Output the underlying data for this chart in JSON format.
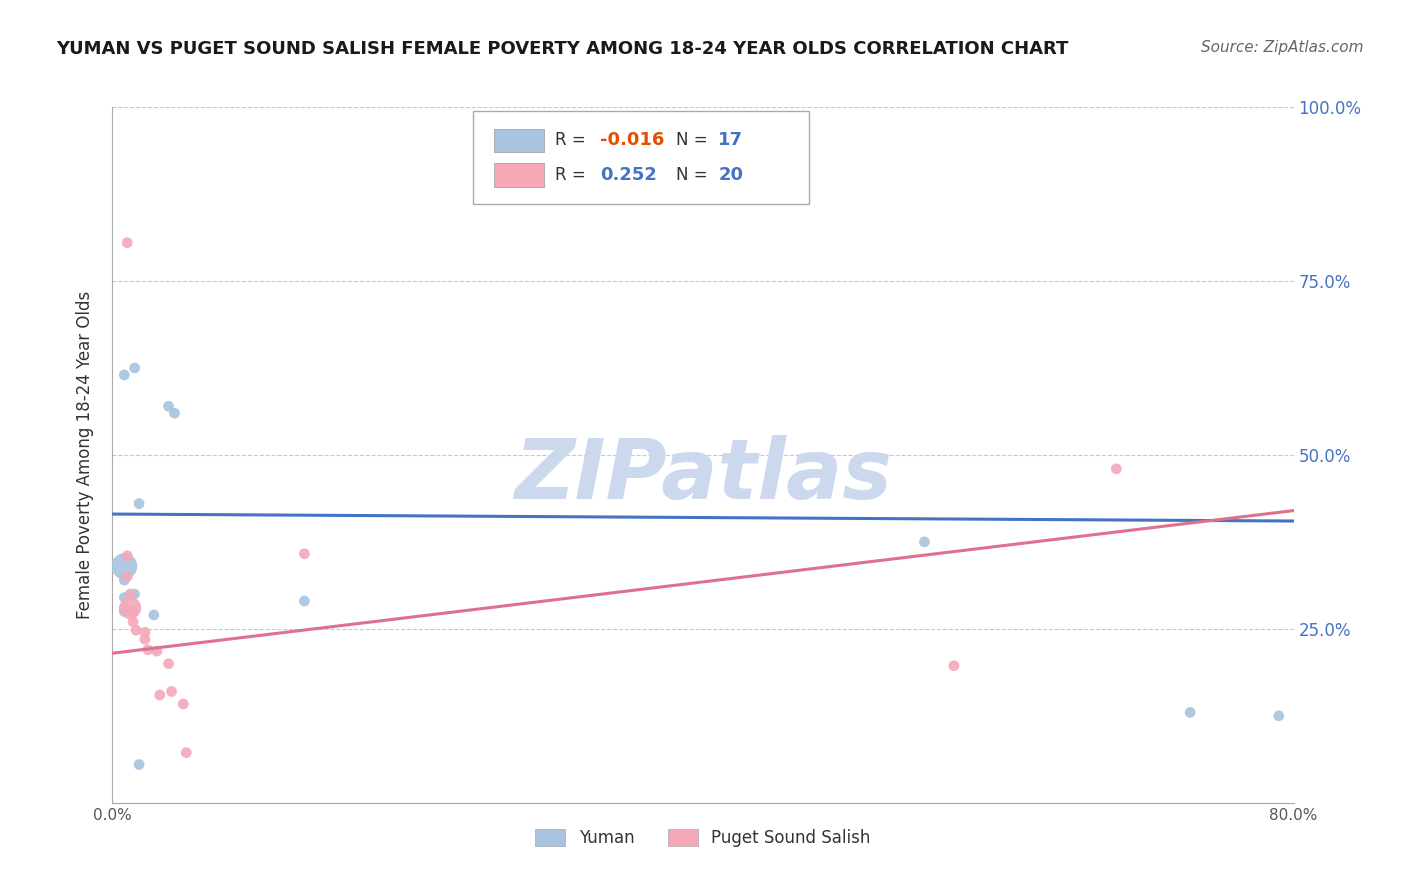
{
  "title": "YUMAN VS PUGET SOUND SALISH FEMALE POVERTY AMONG 18-24 YEAR OLDS CORRELATION CHART",
  "source": "Source: ZipAtlas.com",
  "ylabel": "Female Poverty Among 18-24 Year Olds",
  "xlim": [
    0.0,
    0.8
  ],
  "ylim": [
    0.0,
    1.0
  ],
  "xticks": [
    0.0,
    0.1,
    0.2,
    0.3,
    0.4,
    0.5,
    0.6,
    0.7,
    0.8
  ],
  "xticklabels": [
    "0.0%",
    "",
    "",
    "",
    "",
    "",
    "",
    "",
    "80.0%"
  ],
  "yticks": [
    0.0,
    0.25,
    0.5,
    0.75,
    1.0
  ],
  "yticklabels": [
    "",
    "25.0%",
    "50.0%",
    "75.0%",
    "100.0%"
  ],
  "background_color": "#ffffff",
  "grid_color": "#bbbbbb",
  "legend_R": [
    -0.016,
    0.252
  ],
  "legend_N": [
    17,
    20
  ],
  "yuman_color": "#a8c4e0",
  "puget_color": "#f4a8b8",
  "yuman_line_color": "#4472c4",
  "puget_line_color": "#e07090",
  "yuman_line": [
    0.415,
    0.405
  ],
  "puget_line": [
    0.215,
    0.42
  ],
  "yuman_points": [
    [
      0.015,
      0.625
    ],
    [
      0.008,
      0.615
    ],
    [
      0.038,
      0.57
    ],
    [
      0.042,
      0.56
    ],
    [
      0.018,
      0.43
    ],
    [
      0.008,
      0.34
    ],
    [
      0.008,
      0.32
    ],
    [
      0.015,
      0.3
    ],
    [
      0.008,
      0.295
    ],
    [
      0.008,
      0.28
    ],
    [
      0.008,
      0.275
    ],
    [
      0.028,
      0.27
    ],
    [
      0.13,
      0.29
    ],
    [
      0.018,
      0.055
    ],
    [
      0.55,
      0.375
    ],
    [
      0.73,
      0.13
    ],
    [
      0.79,
      0.125
    ]
  ],
  "yuman_sizes": [
    60,
    60,
    60,
    60,
    60,
    350,
    60,
    60,
    60,
    60,
    60,
    60,
    60,
    60,
    60,
    60,
    60
  ],
  "puget_points": [
    [
      0.01,
      0.805
    ],
    [
      0.01,
      0.355
    ],
    [
      0.01,
      0.325
    ],
    [
      0.012,
      0.3
    ],
    [
      0.012,
      0.28
    ],
    [
      0.014,
      0.275
    ],
    [
      0.014,
      0.26
    ],
    [
      0.016,
      0.248
    ],
    [
      0.022,
      0.245
    ],
    [
      0.022,
      0.235
    ],
    [
      0.024,
      0.22
    ],
    [
      0.03,
      0.218
    ],
    [
      0.032,
      0.155
    ],
    [
      0.038,
      0.2
    ],
    [
      0.04,
      0.16
    ],
    [
      0.048,
      0.142
    ],
    [
      0.05,
      0.072
    ],
    [
      0.13,
      0.358
    ],
    [
      0.57,
      0.197
    ],
    [
      0.68,
      0.48
    ]
  ],
  "puget_sizes": [
    60,
    60,
    60,
    60,
    250,
    60,
    60,
    60,
    60,
    60,
    60,
    60,
    60,
    60,
    60,
    60,
    60,
    60,
    60,
    60
  ]
}
